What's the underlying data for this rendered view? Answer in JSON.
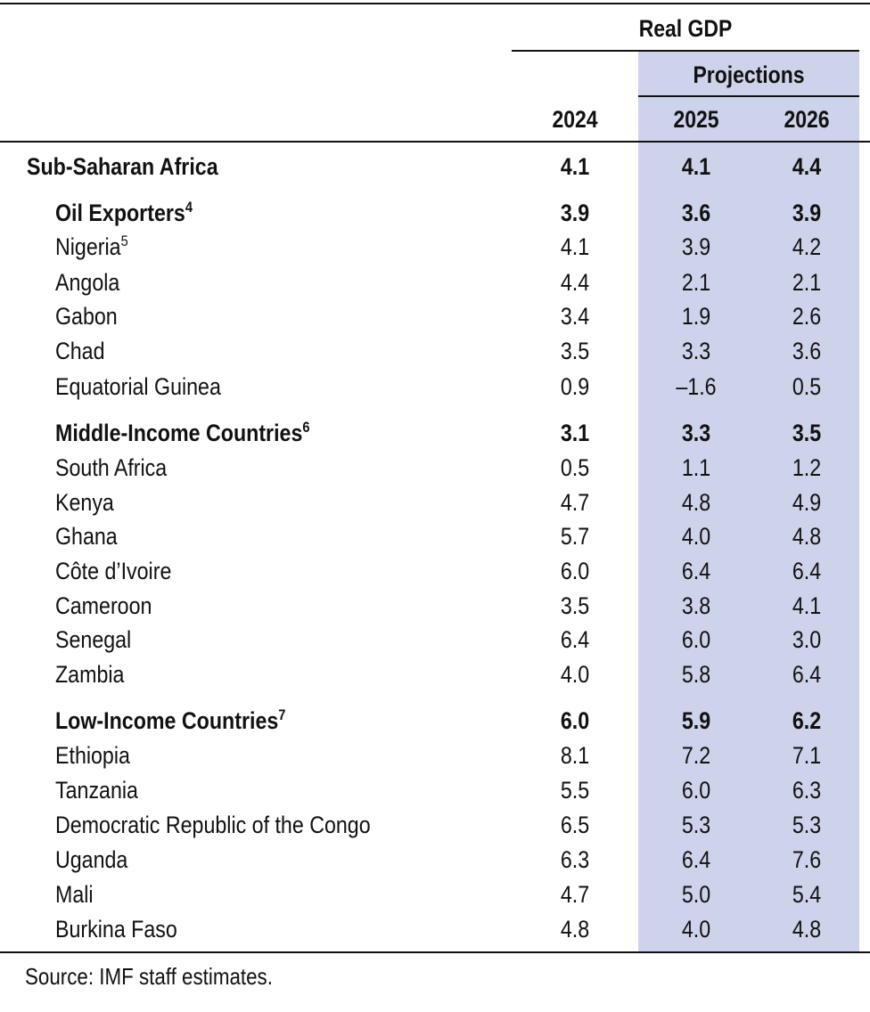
{
  "header": {
    "group_label": "Real GDP",
    "projections_label": "Projections",
    "years": [
      "2024",
      "2025",
      "2026"
    ]
  },
  "rows": [
    {
      "label": "Sub-Saharan Africa",
      "sup": "",
      "values": [
        "4.1",
        "4.1",
        "4.4"
      ]
    },
    {
      "label": "Oil Exporters",
      "sup": "4",
      "values": [
        "3.9",
        "3.6",
        "3.9"
      ]
    },
    {
      "label": "Nigeria",
      "sup": "5",
      "values": [
        "4.1",
        "3.9",
        "4.2"
      ]
    },
    {
      "label": "Angola",
      "sup": "",
      "values": [
        "4.4",
        "2.1",
        "2.1"
      ]
    },
    {
      "label": "Gabon",
      "sup": "",
      "values": [
        "3.4",
        "1.9",
        "2.6"
      ]
    },
    {
      "label": "Chad",
      "sup": "",
      "values": [
        "3.5",
        "3.3",
        "3.6"
      ]
    },
    {
      "label": "Equatorial Guinea",
      "sup": "",
      "values": [
        "0.9",
        "–1.6",
        "0.5"
      ]
    },
    {
      "label": "Middle-Income Countries",
      "sup": "6",
      "values": [
        "3.1",
        "3.3",
        "3.5"
      ]
    },
    {
      "label": "South Africa",
      "sup": "",
      "values": [
        "0.5",
        "1.1",
        "1.2"
      ]
    },
    {
      "label": "Kenya",
      "sup": "",
      "values": [
        "4.7",
        "4.8",
        "4.9"
      ]
    },
    {
      "label": "Ghana",
      "sup": "",
      "values": [
        "5.7",
        "4.0",
        "4.8"
      ]
    },
    {
      "label": "Côte d’Ivoire",
      "sup": "",
      "values": [
        "6.0",
        "6.4",
        "6.4"
      ]
    },
    {
      "label": "Cameroon",
      "sup": "",
      "values": [
        "3.5",
        "3.8",
        "4.1"
      ]
    },
    {
      "label": "Senegal",
      "sup": "",
      "values": [
        "6.4",
        "6.0",
        "3.0"
      ]
    },
    {
      "label": "Zambia",
      "sup": "",
      "values": [
        "4.0",
        "5.8",
        "6.4"
      ]
    },
    {
      "label": "Low-Income Countries",
      "sup": "7",
      "values": [
        "6.0",
        "5.9",
        "6.2"
      ]
    },
    {
      "label": "Ethiopia",
      "sup": "",
      "values": [
        "8.1",
        "7.2",
        "7.1"
      ]
    },
    {
      "label": "Tanzania",
      "sup": "",
      "values": [
        "5.5",
        "6.0",
        "6.3"
      ]
    },
    {
      "label": "Democratic Republic of the Congo",
      "sup": "",
      "values": [
        "6.5",
        "5.3",
        "5.3"
      ]
    },
    {
      "label": "Uganda",
      "sup": "",
      "values": [
        "6.3",
        "6.4",
        "7.6"
      ]
    },
    {
      "label": "Mali",
      "sup": "",
      "values": [
        "4.7",
        "5.0",
        "5.4"
      ]
    },
    {
      "label": "Burkina Faso",
      "sup": "",
      "values": [
        "4.8",
        "4.0",
        "4.8"
      ]
    }
  ],
  "source": "Source: IMF staff estimates.",
  "colors": {
    "projection_shade": "#cdd3ea",
    "rule": "#111111"
  }
}
